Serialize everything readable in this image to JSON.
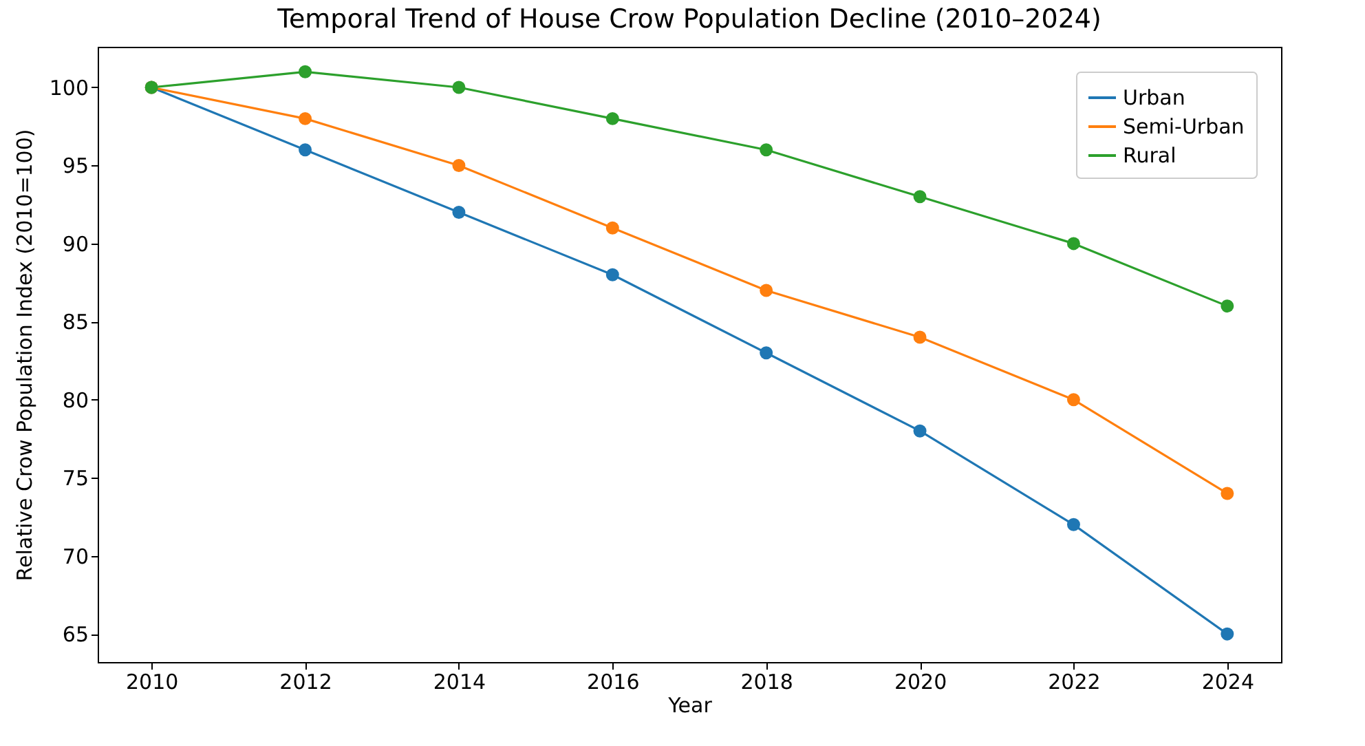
{
  "chart_data": {
    "type": "line",
    "title": "Temporal Trend of House Crow Population Decline (2010–2024)",
    "xlabel": "Year",
    "ylabel": "Relative Crow Population Index (2010=100)",
    "x": [
      2010,
      2012,
      2014,
      2016,
      2018,
      2020,
      2022,
      2024
    ],
    "series": [
      {
        "name": "Urban",
        "color": "#1f77b4",
        "values": [
          100,
          96,
          92,
          88,
          83,
          78,
          72,
          65
        ]
      },
      {
        "name": "Semi-Urban",
        "color": "#ff7f0e",
        "values": [
          100,
          98,
          95,
          91,
          87,
          84,
          80,
          74
        ]
      },
      {
        "name": "Rural",
        "color": "#2ca02c",
        "values": [
          100,
          101,
          100,
          98,
          96,
          93,
          90,
          86
        ]
      }
    ],
    "xlim": [
      2009.3,
      2024.7
    ],
    "xticks": [
      2010,
      2012,
      2014,
      2016,
      2018,
      2020,
      2022,
      2024
    ],
    "ylim": [
      63.2,
      102.6
    ],
    "yticks": [
      65,
      70,
      75,
      80,
      85,
      90,
      95,
      100
    ],
    "legend": "top right",
    "marker": "circle",
    "line_style": "solid",
    "grid": false
  }
}
